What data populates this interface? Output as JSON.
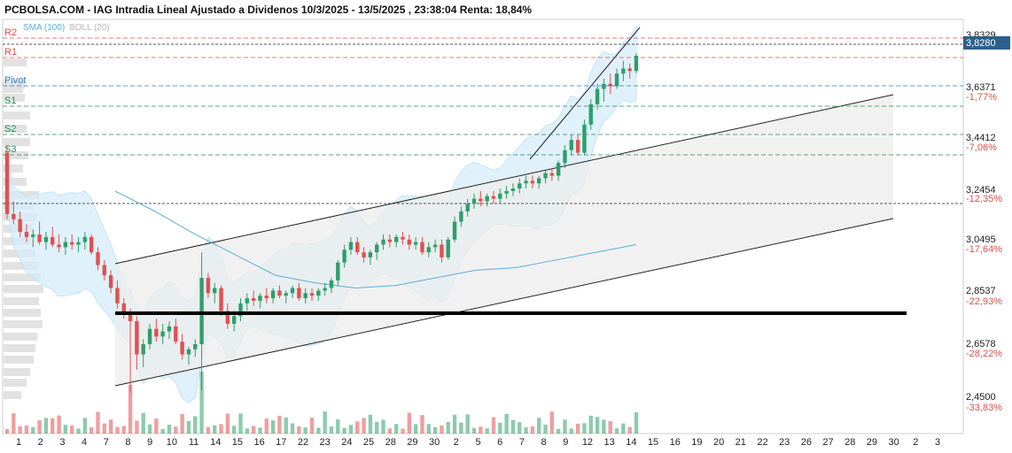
{
  "title": "PCBOLSA.COM - IAG Intradia Lineal Ajustado a Dividenos 10/3/2025 - 13/5/2025 , 23:38:04 Renta: 18,84%",
  "legend": {
    "sma": "SMA (100)",
    "boll": "BOLL (20)",
    "sma_color": "#5aaedb",
    "boll_color": "#b8b8b8"
  },
  "last_price": "3,8280",
  "colors": {
    "up": "#2f9e6b",
    "down": "#e05050",
    "pivot": "#2a7bc0",
    "support": "#1f8f5a",
    "resistance": "#e05050",
    "band": "#d6ecfa",
    "channel": "#ececec"
  },
  "levels": [
    {
      "name": "R2",
      "price": 3.86,
      "color": "#e05050"
    },
    {
      "name": "R1",
      "price": 3.8,
      "color": "#e05050"
    },
    {
      "name": "Pivot",
      "price": 3.66,
      "color": "#2a7bc0"
    },
    {
      "name": "S1",
      "price": 3.61,
      "color": "#1f8f5a"
    },
    {
      "name": "S2",
      "price": 3.53,
      "color": "#1f8f5a"
    },
    {
      "name": "S3",
      "price": 3.48,
      "color": "#1f8f5a"
    }
  ],
  "chart_data": {
    "type": "candlestick",
    "title": "PCBOLSA.COM - IAG Intradia Lineal Ajustado a Dividenos 10/3/2025 - 13/5/2025 , 23:38:04 Renta: 18,84%",
    "y_ticks": [
      {
        "value": 3.8329,
        "label": "3,8329",
        "pct": ""
      },
      {
        "value": 3.828,
        "label": "3,8280",
        "pct": ""
      },
      {
        "value": 3.6371,
        "label": "3,6371",
        "pct": "-1,77%"
      },
      {
        "value": 3.4412,
        "label": "3,4412",
        "pct": "-7,06%"
      },
      {
        "value": 3.2454,
        "label": "3,2454",
        "pct": "-12,35%"
      },
      {
        "value": 3.0495,
        "label": "3,0495",
        "pct": "-17,64%"
      },
      {
        "value": 2.8537,
        "label": "2,8537",
        "pct": "-22,93%"
      },
      {
        "value": 2.6578,
        "label": "2,6578",
        "pct": "-28,22%"
      },
      {
        "value": 2.45,
        "label": "2,4500",
        "pct": "-33,83%"
      }
    ],
    "x_labels": [
      "1",
      "2",
      "3",
      "4",
      "7",
      "8",
      "9",
      "10",
      "11",
      "14",
      "15",
      "16",
      "17",
      "22",
      "23",
      "24",
      "25",
      "28",
      "29",
      "30",
      "2",
      "5",
      "6",
      "7",
      "8",
      "9",
      "12",
      "13",
      "14",
      "15",
      "16",
      "19",
      "20",
      "21",
      "22",
      "23",
      "26",
      "27",
      "28",
      "29",
      "30",
      "2",
      "3"
    ],
    "ylim": [
      2.43,
      3.9
    ],
    "support_line": {
      "price": 2.815
    },
    "candles": [
      [
        3.45,
        3.48,
        3.19,
        3.21
      ],
      [
        3.21,
        3.26,
        3.17,
        3.19
      ],
      [
        3.19,
        3.22,
        3.12,
        3.14
      ],
      [
        3.14,
        3.17,
        3.1,
        3.12
      ],
      [
        3.12,
        3.15,
        3.08,
        3.13
      ],
      [
        3.13,
        3.18,
        3.09,
        3.1
      ],
      [
        3.1,
        3.14,
        3.07,
        3.12
      ],
      [
        3.12,
        3.16,
        3.08,
        3.09
      ],
      [
        3.09,
        3.13,
        3.06,
        3.08
      ],
      [
        3.08,
        3.12,
        3.05,
        3.1
      ],
      [
        3.1,
        3.13,
        3.07,
        3.09
      ],
      [
        3.09,
        3.12,
        3.06,
        3.1
      ],
      [
        3.1,
        3.14,
        3.07,
        3.12
      ],
      [
        3.12,
        3.13,
        3.05,
        3.06
      ],
      [
        3.06,
        3.08,
        2.99,
        3.01
      ],
      [
        3.01,
        3.03,
        2.95,
        2.97
      ],
      [
        2.97,
        2.99,
        2.9,
        2.92
      ],
      [
        2.92,
        2.95,
        2.84,
        2.86
      ],
      [
        2.86,
        2.88,
        2.8,
        2.82
      ],
      [
        2.82,
        2.84,
        2.51,
        2.79
      ],
      [
        2.79,
        2.81,
        2.6,
        2.66
      ],
      [
        2.66,
        2.72,
        2.61,
        2.7
      ],
      [
        2.7,
        2.78,
        2.68,
        2.76
      ],
      [
        2.76,
        2.8,
        2.71,
        2.73
      ],
      [
        2.73,
        2.78,
        2.7,
        2.75
      ],
      [
        2.75,
        2.79,
        2.72,
        2.77
      ],
      [
        2.77,
        2.8,
        2.7,
        2.71
      ],
      [
        2.71,
        2.74,
        2.64,
        2.66
      ],
      [
        2.66,
        2.69,
        2.62,
        2.68
      ],
      [
        2.68,
        2.72,
        2.65,
        2.7
      ],
      [
        2.7,
        3.06,
        2.52,
        2.96
      ],
      [
        2.96,
        2.98,
        2.88,
        2.9
      ],
      [
        2.9,
        2.94,
        2.86,
        2.92
      ],
      [
        2.92,
        2.93,
        2.81,
        2.83
      ],
      [
        2.83,
        2.86,
        2.76,
        2.78
      ],
      [
        2.78,
        2.83,
        2.75,
        2.81
      ],
      [
        2.81,
        2.88,
        2.79,
        2.86
      ],
      [
        2.86,
        2.9,
        2.83,
        2.88
      ],
      [
        2.88,
        2.91,
        2.85,
        2.87
      ],
      [
        2.87,
        2.9,
        2.84,
        2.89
      ],
      [
        2.89,
        2.92,
        2.86,
        2.88
      ],
      [
        2.88,
        2.92,
        2.86,
        2.91
      ],
      [
        2.91,
        2.93,
        2.88,
        2.89
      ],
      [
        2.89,
        2.91,
        2.86,
        2.9
      ],
      [
        2.9,
        2.93,
        2.88,
        2.92
      ],
      [
        2.92,
        2.94,
        2.87,
        2.88
      ],
      [
        2.88,
        2.92,
        2.86,
        2.9
      ],
      [
        2.9,
        2.92,
        2.87,
        2.89
      ],
      [
        2.89,
        2.92,
        2.87,
        2.91
      ],
      [
        2.91,
        2.94,
        2.89,
        2.92
      ],
      [
        2.92,
        2.96,
        2.9,
        2.95
      ],
      [
        2.95,
        3.03,
        2.93,
        3.02
      ],
      [
        3.02,
        3.09,
        3.0,
        3.07
      ],
      [
        3.07,
        3.12,
        3.05,
        3.1
      ],
      [
        3.1,
        3.12,
        3.05,
        3.06
      ],
      [
        3.06,
        3.08,
        3.02,
        3.04
      ],
      [
        3.04,
        3.07,
        3.01,
        3.06
      ],
      [
        3.06,
        3.1,
        3.03,
        3.09
      ],
      [
        3.09,
        3.13,
        3.07,
        3.11
      ],
      [
        3.11,
        3.13,
        3.08,
        3.1
      ],
      [
        3.1,
        3.13,
        3.08,
        3.12
      ],
      [
        3.12,
        3.14,
        3.09,
        3.11
      ],
      [
        3.11,
        3.13,
        3.07,
        3.09
      ],
      [
        3.09,
        3.12,
        3.07,
        3.1
      ],
      [
        3.1,
        3.12,
        3.05,
        3.06
      ],
      [
        3.06,
        3.1,
        3.04,
        3.08
      ],
      [
        3.08,
        3.11,
        3.06,
        3.09
      ],
      [
        3.09,
        3.11,
        3.02,
        3.04
      ],
      [
        3.04,
        3.12,
        3.03,
        3.11
      ],
      [
        3.11,
        3.2,
        3.1,
        3.18
      ],
      [
        3.18,
        3.24,
        3.16,
        3.22
      ],
      [
        3.22,
        3.27,
        3.2,
        3.25
      ],
      [
        3.25,
        3.29,
        3.23,
        3.27
      ],
      [
        3.27,
        3.3,
        3.24,
        3.26
      ],
      [
        3.26,
        3.29,
        3.24,
        3.28
      ],
      [
        3.28,
        3.3,
        3.25,
        3.27
      ],
      [
        3.27,
        3.31,
        3.25,
        3.29
      ],
      [
        3.29,
        3.32,
        3.27,
        3.3
      ],
      [
        3.3,
        3.33,
        3.28,
        3.31
      ],
      [
        3.31,
        3.35,
        3.29,
        3.33
      ],
      [
        3.33,
        3.36,
        3.31,
        3.34
      ],
      [
        3.34,
        3.36,
        3.31,
        3.33
      ],
      [
        3.33,
        3.36,
        3.31,
        3.35
      ],
      [
        3.35,
        3.38,
        3.33,
        3.37
      ],
      [
        3.37,
        3.39,
        3.34,
        3.36
      ],
      [
        3.36,
        3.42,
        3.34,
        3.41
      ],
      [
        3.41,
        3.48,
        3.39,
        3.46
      ],
      [
        3.46,
        3.52,
        3.44,
        3.5
      ],
      [
        3.5,
        3.52,
        3.44,
        3.45
      ],
      [
        3.45,
        3.58,
        3.44,
        3.56
      ],
      [
        3.56,
        3.66,
        3.54,
        3.64
      ],
      [
        3.64,
        3.72,
        3.62,
        3.7
      ],
      [
        3.7,
        3.74,
        3.65,
        3.72
      ],
      [
        3.72,
        3.76,
        3.68,
        3.71
      ],
      [
        3.71,
        3.78,
        3.7,
        3.76
      ],
      [
        3.76,
        3.81,
        3.73,
        3.78
      ],
      [
        3.78,
        3.8,
        3.74,
        3.77
      ],
      [
        3.77,
        3.84,
        3.76,
        3.83
      ]
    ],
    "series": [
      {
        "name": "SMA (100)",
        "values": [
          3.3,
          3.22,
          3.13,
          3.05,
          2.97,
          2.94,
          2.92,
          2.93,
          2.96,
          2.99,
          3.0,
          3.03,
          3.06,
          3.09
        ]
      }
    ]
  }
}
